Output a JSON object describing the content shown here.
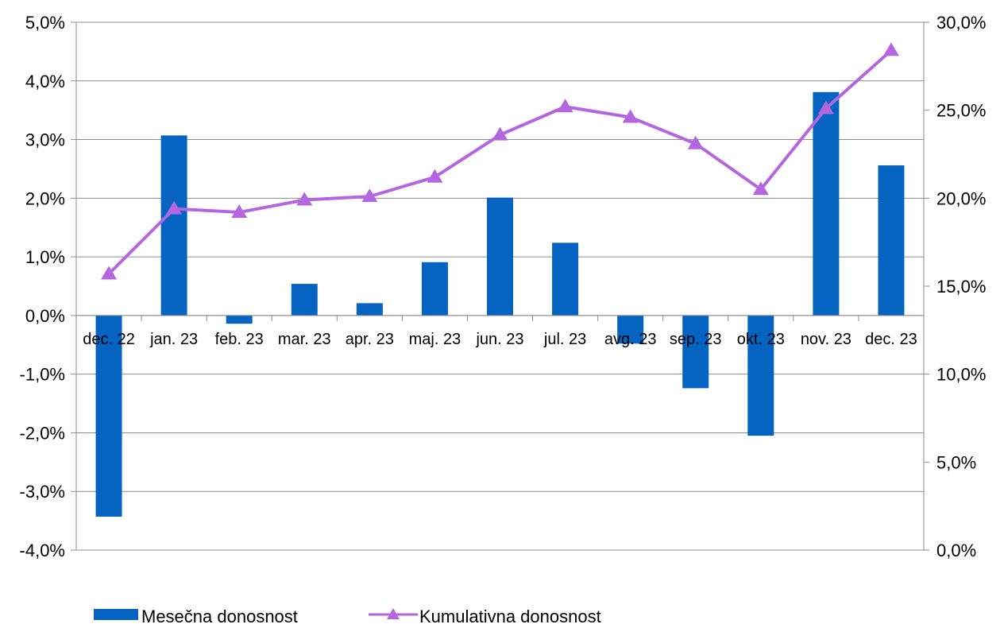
{
  "chart_data": {
    "type": "bar",
    "categories": [
      "dec. 22",
      "jan. 23",
      "feb. 23",
      "mar. 23",
      "apr. 23",
      "maj. 23",
      "jun. 23",
      "jul. 23",
      "avg. 23",
      "sep. 23",
      "okt. 23",
      "nov. 23",
      "dec. 23"
    ],
    "series": [
      {
        "name": "Mesečna donosnost",
        "type": "bar",
        "axis": "left",
        "color": "#0563C1",
        "values": [
          -3.43,
          3.07,
          -0.14,
          0.54,
          0.21,
          0.91,
          2.01,
          1.24,
          -0.48,
          -1.24,
          -2.05,
          3.81,
          2.56
        ]
      },
      {
        "name": "Kumulativna donosnost",
        "type": "line",
        "marker": "triangle",
        "axis": "right",
        "color": "#B366E0",
        "values": [
          15.7,
          19.4,
          19.2,
          19.9,
          20.1,
          21.2,
          23.6,
          25.2,
          24.6,
          23.1,
          20.5,
          25.1,
          28.4
        ]
      }
    ],
    "y_left": {
      "min": -4.0,
      "max": 5.0,
      "ticks": [
        "-4,0%",
        "-3,0%",
        "-2,0%",
        "-1,0%",
        "0,0%",
        "1,0%",
        "2,0%",
        "3,0%",
        "4,0%",
        "5,0%"
      ]
    },
    "y_right": {
      "min": 0.0,
      "max": 30.0,
      "ticks": [
        "0,0%",
        "5,0%",
        "10,0%",
        "15,0%",
        "20,0%",
        "25,0%",
        "30,0%"
      ]
    },
    "grid": true,
    "legend_position": "bottom-left"
  }
}
